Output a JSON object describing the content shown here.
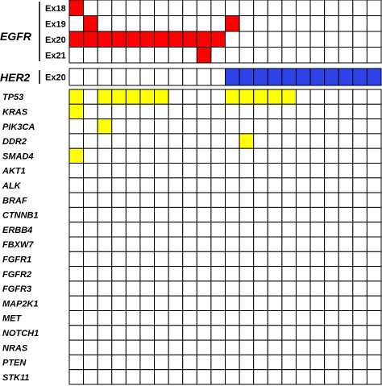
{
  "chart_data": {
    "type": "heatmap",
    "n_columns": 22,
    "colors": {
      "egfr": "#ff0000",
      "her2": "#2e43e6",
      "comutation": "#ffff00",
      "empty": "#ffffff",
      "border": "#000000"
    },
    "sections": [
      {
        "gene": "EGFR",
        "color_key": "egfr",
        "rows": [
          {
            "label": "Ex18",
            "marked": [
              0
            ]
          },
          {
            "label": "Ex19",
            "marked": [
              1,
              11
            ]
          },
          {
            "label": "Ex20",
            "marked": [
              0,
              1,
              2,
              3,
              4,
              5,
              6,
              7,
              8,
              9,
              10
            ]
          },
          {
            "label": "Ex21",
            "marked": [
              9
            ]
          }
        ]
      },
      {
        "gene": "HER2",
        "color_key": "her2",
        "rows": [
          {
            "label": "Ex20",
            "marked": [
              11,
              12,
              13,
              14,
              15,
              16,
              17,
              18,
              19,
              20,
              21
            ]
          }
        ]
      },
      {
        "gene": "",
        "color_key": "comutation",
        "rows": [
          {
            "label": "TP53",
            "marked": [
              0,
              2,
              3,
              4,
              5,
              6,
              11,
              12,
              13,
              14,
              15
            ]
          },
          {
            "label": "KRAS",
            "marked": [
              0
            ]
          },
          {
            "label": "PIK3CA",
            "marked": [
              2
            ]
          },
          {
            "label": "DDR2",
            "marked": [
              12
            ]
          },
          {
            "label": "SMAD4",
            "marked": [
              0
            ]
          },
          {
            "label": "AKT1",
            "marked": []
          },
          {
            "label": "ALK",
            "marked": []
          },
          {
            "label": "BRAF",
            "marked": []
          },
          {
            "label": "CTNNB1",
            "marked": []
          },
          {
            "label": "ERBB4",
            "marked": []
          },
          {
            "label": "FBXW7",
            "marked": []
          },
          {
            "label": "FGFR1",
            "marked": []
          },
          {
            "label": "FGFR2",
            "marked": []
          },
          {
            "label": "FGFR3",
            "marked": []
          },
          {
            "label": "MAP2K1",
            "marked": []
          },
          {
            "label": "MET",
            "marked": []
          },
          {
            "label": "NOTCH1",
            "marked": []
          },
          {
            "label": "NRAS",
            "marked": []
          },
          {
            "label": "PTEN",
            "marked": []
          },
          {
            "label": "STK11",
            "marked": []
          }
        ]
      }
    ]
  }
}
